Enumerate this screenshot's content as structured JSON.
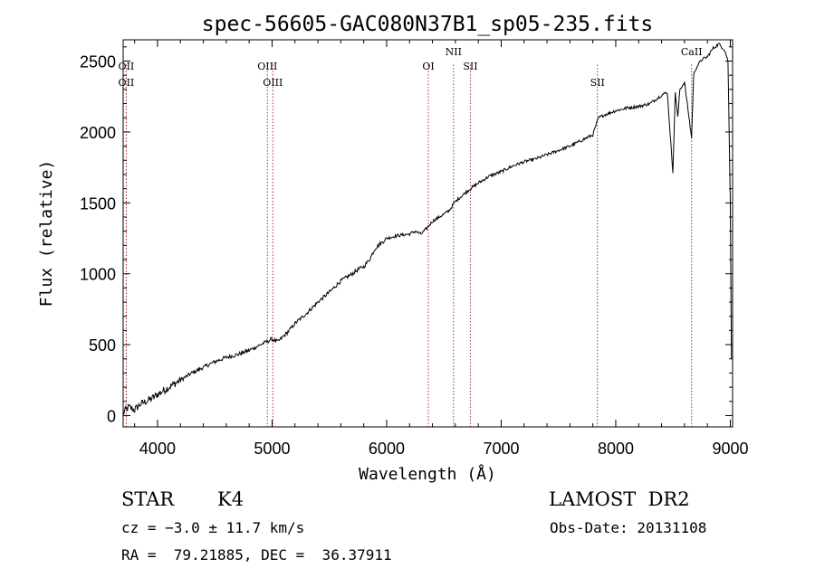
{
  "chart_data": {
    "type": "line",
    "title": "spec-56605-GAC080N37B1_sp05-235.fits",
    "xlabel": "Wavelength (Å)",
    "ylabel": "Flux (relative)",
    "xlim": [
      3700,
      9020
    ],
    "ylim": [
      -80,
      2650
    ],
    "xticks": [
      4000,
      5000,
      6000,
      7000,
      8000,
      9000
    ],
    "yticks": [
      0,
      500,
      1000,
      1500,
      2000,
      2500
    ],
    "grid": false,
    "series": [
      {
        "x": [
          3700,
          3750,
          3800,
          3850,
          3900,
          3950,
          4000,
          4100,
          4200,
          4300,
          4400,
          4500,
          4600,
          4700,
          4800,
          4900,
          4950,
          5000,
          5050,
          5100,
          5150,
          5200,
          5300,
          5400,
          5500,
          5600,
          5700,
          5750,
          5800,
          5850,
          5900,
          6000,
          6100,
          6200,
          6250,
          6300,
          6350,
          6400,
          6500,
          6550,
          6600,
          6700,
          6800,
          6900,
          7000,
          7100,
          7200,
          7300,
          7400,
          7500,
          7600,
          7700,
          7750,
          7800,
          7850,
          7900,
          8000,
          8100,
          8200,
          8300,
          8400,
          8450,
          8498,
          8520,
          8542,
          8560,
          8600,
          8662,
          8680,
          8700,
          8750,
          8800,
          8850,
          8900,
          8950,
          8980,
          9000,
          9010
        ],
        "y": [
          20,
          60,
          40,
          80,
          100,
          120,
          150,
          200,
          250,
          300,
          340,
          380,
          410,
          430,
          460,
          500,
          520,
          540,
          520,
          560,
          600,
          650,
          720,
          800,
          870,
          950,
          1000,
          1030,
          1050,
          1100,
          1180,
          1250,
          1270,
          1280,
          1300,
          1280,
          1320,
          1370,
          1420,
          1450,
          1510,
          1580,
          1640,
          1690,
          1720,
          1760,
          1790,
          1810,
          1840,
          1870,
          1900,
          1940,
          1960,
          1980,
          2100,
          2120,
          2150,
          2170,
          2180,
          2200,
          2260,
          2280,
          1720,
          2280,
          2100,
          2300,
          2350,
          1960,
          2400,
          2450,
          2510,
          2530,
          2590,
          2620,
          2580,
          2500,
          1500,
          400
        ]
      }
    ],
    "lines": [
      {
        "label": "OII",
        "x": 3727,
        "row": 1
      },
      {
        "label": "OII",
        "x": 3727,
        "row": 2
      },
      {
        "label": "OIII",
        "x": 4959,
        "row": 1
      },
      {
        "label": "OIII",
        "x": 5007,
        "row": 2
      },
      {
        "label": "OI",
        "x": 6364,
        "row": 1
      },
      {
        "label": "NII",
        "x": 6584,
        "row": 0
      },
      {
        "label": "SII",
        "x": 6731,
        "row": 1
      },
      {
        "label": "SII",
        "x": 7840,
        "row": 2
      },
      {
        "label": "CaII",
        "x": 8662,
        "row": 0
      }
    ]
  },
  "footer": {
    "object_class": "STAR",
    "subclass": "K4",
    "cz": "cz = −3.0 ± 11.7 km/s",
    "coords": "RA =  79.21885, DEC =  36.37911",
    "survey": "LAMOST  DR2",
    "obs_date": "Obs-Date: 20131108"
  }
}
